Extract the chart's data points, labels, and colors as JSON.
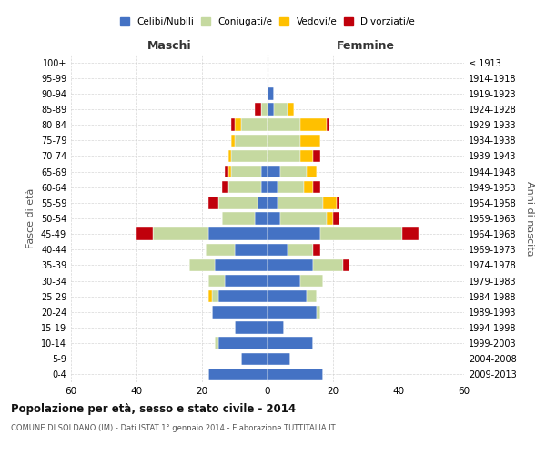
{
  "age_groups": [
    "0-4",
    "5-9",
    "10-14",
    "15-19",
    "20-24",
    "25-29",
    "30-34",
    "35-39",
    "40-44",
    "45-49",
    "50-54",
    "55-59",
    "60-64",
    "65-69",
    "70-74",
    "75-79",
    "80-84",
    "85-89",
    "90-94",
    "95-99",
    "100+"
  ],
  "birth_years": [
    "2009-2013",
    "2004-2008",
    "1999-2003",
    "1994-1998",
    "1989-1993",
    "1984-1988",
    "1979-1983",
    "1974-1978",
    "1969-1973",
    "1964-1968",
    "1959-1963",
    "1954-1958",
    "1949-1953",
    "1944-1948",
    "1939-1943",
    "1934-1938",
    "1929-1933",
    "1924-1928",
    "1919-1923",
    "1914-1918",
    "≤ 1913"
  ],
  "male": {
    "celibi": [
      18,
      8,
      15,
      10,
      17,
      15,
      13,
      16,
      10,
      18,
      4,
      3,
      2,
      2,
      0,
      0,
      0,
      0,
      0,
      0,
      0
    ],
    "coniugati": [
      0,
      0,
      1,
      0,
      0,
      2,
      5,
      8,
      9,
      17,
      10,
      12,
      10,
      9,
      11,
      10,
      8,
      2,
      0,
      0,
      0
    ],
    "vedovi": [
      0,
      0,
      0,
      0,
      0,
      1,
      0,
      0,
      0,
      0,
      0,
      0,
      0,
      1,
      1,
      1,
      2,
      0,
      0,
      0,
      0
    ],
    "divorziati": [
      0,
      0,
      0,
      0,
      0,
      0,
      0,
      0,
      0,
      5,
      0,
      3,
      2,
      1,
      0,
      0,
      1,
      2,
      0,
      0,
      0
    ]
  },
  "female": {
    "nubili": [
      17,
      7,
      14,
      5,
      15,
      12,
      10,
      14,
      6,
      16,
      4,
      3,
      3,
      4,
      0,
      0,
      0,
      2,
      2,
      0,
      0
    ],
    "coniugate": [
      0,
      0,
      0,
      0,
      1,
      3,
      7,
      9,
      8,
      25,
      14,
      14,
      8,
      8,
      10,
      10,
      10,
      4,
      0,
      0,
      0
    ],
    "vedove": [
      0,
      0,
      0,
      0,
      0,
      0,
      0,
      0,
      0,
      0,
      2,
      4,
      3,
      3,
      4,
      6,
      8,
      2,
      0,
      0,
      0
    ],
    "divorziate": [
      0,
      0,
      0,
      0,
      0,
      0,
      0,
      2,
      2,
      5,
      2,
      1,
      2,
      0,
      2,
      0,
      1,
      0,
      0,
      0,
      0
    ]
  },
  "colors": {
    "celibi": "#4472c4",
    "coniugati": "#c5d9a0",
    "vedovi": "#ffc000",
    "divorziati": "#c0000b"
  },
  "xlim": 60,
  "title": "Popolazione per età, sesso e stato civile - 2014",
  "subtitle": "COMUNE DI SOLDANO (IM) - Dati ISTAT 1° gennaio 2014 - Elaborazione TUTTITALIA.IT",
  "ylabel": "Fasce di età",
  "ylabel_right": "Anni di nascita",
  "xlabel_left": "Maschi",
  "xlabel_right": "Femmine",
  "legend_labels": [
    "Celibi/Nubili",
    "Coniugati/e",
    "Vedovi/e",
    "Divorziati/e"
  ],
  "bg_color": "#ffffff",
  "grid_color": "#cccccc"
}
